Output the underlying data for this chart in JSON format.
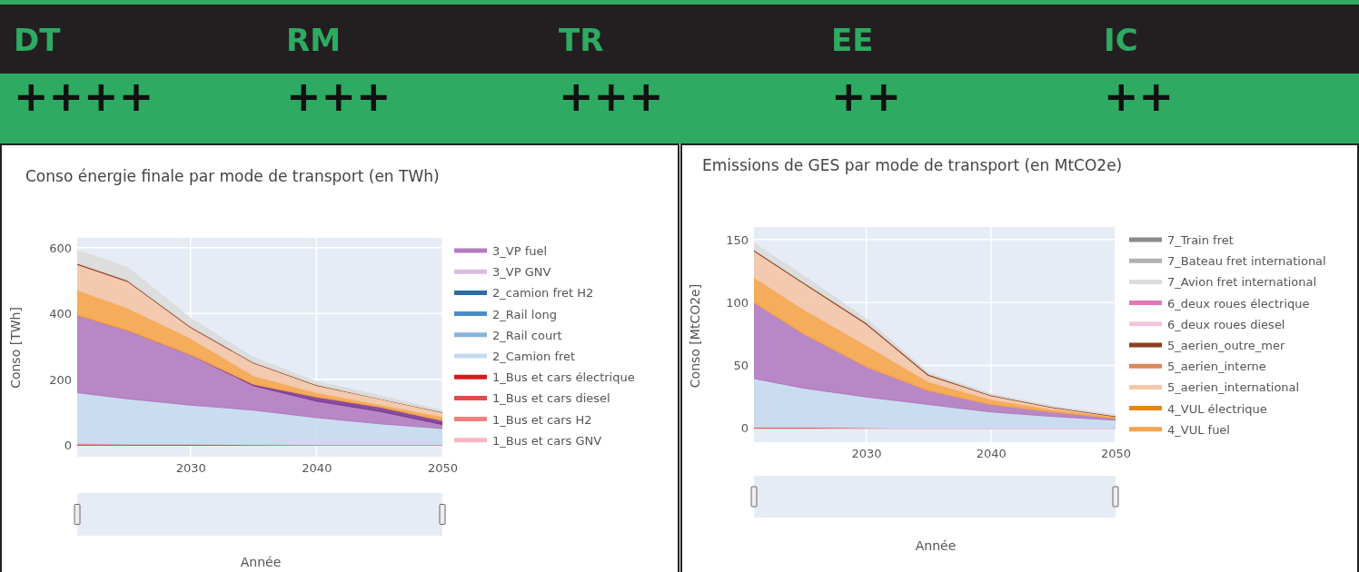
{
  "chart_data": [
    {
      "type": "other",
      "annotations": [
        "DT",
        "RM",
        "TR",
        "EE",
        "IC",
        "++++",
        "+++",
        "+++",
        "++",
        "++"
      ]
    },
    {
      "type": "area",
      "title": "Conso énergie finale par mode de transport (en TWh)",
      "xlabel": "Année",
      "ylabel": "Conso [TWh]",
      "stacked": true,
      "grid": true,
      "legend": "right",
      "x": [
        2021,
        2025,
        2030,
        2035,
        2040,
        2045,
        2050
      ],
      "xlim": [
        2021,
        2050
      ],
      "xticks": [
        2030,
        2040,
        2050
      ],
      "ylim": [
        -35,
        630
      ],
      "yticks": [
        0,
        200,
        400,
        600
      ],
      "series": [
        {
          "name": "1_Bus et cars GNV",
          "color": "#f7b6bf",
          "values": [
            null,
            null,
            null,
            null,
            null,
            null,
            null
          ]
        },
        {
          "name": "1_Bus et cars H2",
          "color": "#f08080",
          "values": [
            null,
            null,
            null,
            null,
            null,
            null,
            null
          ]
        },
        {
          "name": "1_Bus et cars diesel",
          "color": "#e34a4a",
          "values": [
            4,
            3,
            3,
            2,
            1,
            1,
            1
          ]
        },
        {
          "name": "1_Bus et cars électrique",
          "color": "#d7191c",
          "values": [
            null,
            null,
            null,
            null,
            null,
            null,
            null
          ]
        },
        {
          "name": "2_Camion fret",
          "color": "#c6dbef",
          "values": [
            156,
            138,
            119,
            105,
            83,
            64,
            50
          ]
        },
        {
          "name": "2_Rail court",
          "color": "#86b4dc",
          "values": [
            null,
            null,
            null,
            null,
            null,
            null,
            null
          ]
        },
        {
          "name": "2_Rail long",
          "color": "#4a8cc8",
          "values": [
            null,
            null,
            null,
            null,
            null,
            null,
            null
          ]
        },
        {
          "name": "2_camion fret H2",
          "color": "#2e6da4",
          "values": [
            null,
            null,
            null,
            null,
            null,
            null,
            null
          ]
        },
        {
          "name": "3_VP GNV",
          "color": "#d8bfe0",
          "values": [
            null,
            null,
            null,
            null,
            null,
            null,
            null
          ]
        },
        {
          "name": "3_VP fuel",
          "color": "#b27cc0",
          "values": [
            235,
            208,
            153,
            74,
            50,
            38,
            12
          ]
        },
        {
          "color": "#7e3a96",
          "values": [
            0,
            0,
            0,
            4,
            13,
            13,
            12
          ]
        },
        {
          "color": "#f6a54a",
          "values": [
            77,
            68,
            50,
            26,
            13,
            8,
            12
          ]
        },
        {
          "color": "#f4c7a8",
          "values": [
            78,
            81,
            33,
            39,
            22,
            17,
            13
          ]
        },
        {
          "color": "#8c3f1f",
          "values": [
            3,
            3,
            3,
            2,
            2,
            1,
            1
          ]
        },
        {
          "color": "#dcdcdc",
          "values": [
            39,
            39,
            24,
            14,
            9,
            9,
            4
          ]
        }
      ]
    },
    {
      "type": "area",
      "title": "Emissions de GES par mode de transport (en MtCO2e)",
      "xlabel": "Année",
      "ylabel": "Conso [MtCO2e]",
      "stacked": true,
      "grid": true,
      "legend": "right",
      "x": [
        2021,
        2025,
        2030,
        2035,
        2040,
        2045,
        2050
      ],
      "xlim": [
        2021,
        2050
      ],
      "xticks": [
        2030,
        2040,
        2050
      ],
      "ylim": [
        -11,
        160
      ],
      "yticks": [
        0,
        50,
        100,
        150
      ],
      "series": [
        {
          "color": "#e34a4a",
          "values": [
            1,
            1,
            0.5,
            0,
            0,
            0,
            0
          ]
        },
        {
          "color": "#c6dbef",
          "values": [
            38.5,
            31,
            24.5,
            19,
            13,
            9.5,
            6.5
          ]
        },
        {
          "color": "#b27cc0",
          "values": [
            60.5,
            43,
            24,
            11,
            6,
            3.5,
            1.5
          ]
        },
        {
          "name": "4_VUL fuel",
          "color": "#f6a54a",
          "values": [
            20,
            19.5,
            17,
            7,
            4,
            2,
            1.5
          ]
        },
        {
          "name": "4_VUL électrique",
          "color": "#e8850c",
          "values": [
            null,
            null,
            null,
            null,
            null,
            null,
            null
          ]
        },
        {
          "name": "5_aerien_international",
          "color": "#f4c7a8",
          "values": [
            21,
            20.5,
            17,
            5,
            3,
            1.5,
            0
          ]
        },
        {
          "name": "5_aerien_interne",
          "color": "#d9885a",
          "values": [
            null,
            null,
            null,
            null,
            null,
            null,
            null
          ]
        },
        {
          "name": "5_aerien_outre_mer",
          "color": "#8c3f1f",
          "values": [
            1,
            1,
            1,
            1,
            0.5,
            0.5,
            0.5
          ]
        },
        {
          "name": "6_deux roues diesel",
          "color": "#f4c6dc",
          "values": [
            null,
            null,
            null,
            null,
            null,
            null,
            null
          ]
        },
        {
          "name": "6_deux roues électrique",
          "color": "#e377b9",
          "values": [
            null,
            null,
            null,
            null,
            null,
            null,
            null
          ]
        },
        {
          "name": "7_Avion fret international",
          "color": "#dcdcdc",
          "values": [
            5,
            5,
            3,
            1,
            1,
            0.5,
            0.5
          ]
        },
        {
          "name": "7_Bateau fret international",
          "color": "#b0b0b0",
          "values": [
            null,
            null,
            null,
            null,
            null,
            null,
            null
          ]
        },
        {
          "name": "7_Train fret",
          "color": "#8a8a8a",
          "values": [
            null,
            null,
            null,
            null,
            null,
            null,
            null
          ]
        }
      ]
    }
  ]
}
